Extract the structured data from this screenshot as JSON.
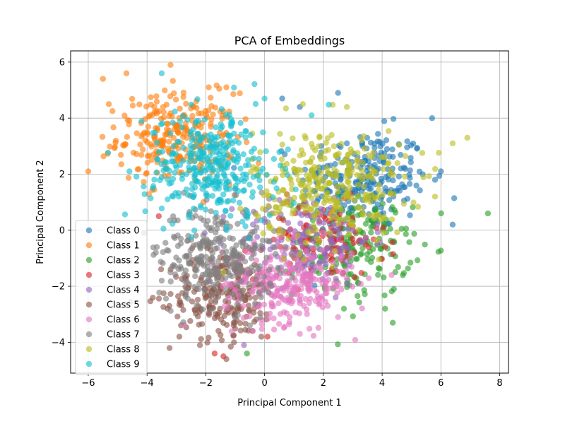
{
  "chart_data": {
    "type": "scatter",
    "title": "PCA of Embeddings",
    "xlabel": "Principal Component 1",
    "ylabel": "Principal Component 2",
    "xlim": [
      -6.6,
      8.3
    ],
    "ylim": [
      -5.1,
      6.4
    ],
    "xticks": [
      -6,
      -4,
      -2,
      0,
      2,
      4,
      6,
      8
    ],
    "yticks": [
      -4,
      -2,
      0,
      2,
      4,
      6
    ],
    "grid": true,
    "legend_position": "lower-left",
    "series": [
      {
        "name": "Class 0",
        "color": "#1f77b4",
        "center": [
          3.4,
          1.8
        ],
        "spread": [
          1.1,
          0.9
        ],
        "n": 240,
        "outliers": [
          [
            5.7,
            4.0
          ],
          [
            6.4,
            0.2
          ],
          [
            2.5,
            4.9
          ],
          [
            0.6,
            4.7
          ],
          [
            1.2,
            4.4
          ],
          [
            5.8,
            1.8
          ],
          [
            6.0,
            2.1
          ]
        ]
      },
      {
        "name": "Class 1",
        "color": "#ff7f0e",
        "center": [
          -3.0,
          3.3
        ],
        "spread": [
          1.0,
          0.8
        ],
        "n": 260,
        "outliers": [
          [
            -6.0,
            2.1
          ],
          [
            -5.5,
            5.4
          ],
          [
            -4.7,
            5.6
          ],
          [
            -3.2,
            5.9
          ],
          [
            -1.9,
            5.1
          ],
          [
            -1.3,
            5.1
          ],
          [
            -5.3,
            4.5
          ]
        ]
      },
      {
        "name": "Class 2",
        "color": "#2ca02c",
        "center": [
          3.0,
          -0.6
        ],
        "spread": [
          1.0,
          0.9
        ],
        "n": 200,
        "outliers": [
          [
            7.6,
            0.6
          ],
          [
            4.1,
            -2.8
          ],
          [
            4.4,
            -2.1
          ],
          [
            2.7,
            -2.8
          ],
          [
            -0.6,
            -4.4
          ]
        ]
      },
      {
        "name": "Class 3",
        "color": "#d62728",
        "center": [
          1.9,
          -0.4
        ],
        "spread": [
          1.1,
          0.7
        ],
        "n": 120,
        "outliers": [
          [
            -1.4,
            -4.5
          ],
          [
            -1.7,
            -4.4
          ],
          [
            0.1,
            -3.8
          ],
          [
            -3.6,
            0.5
          ],
          [
            4.1,
            -0.6
          ]
        ]
      },
      {
        "name": "Class 4",
        "color": "#9467bd",
        "center": [
          1.4,
          -0.3
        ],
        "spread": [
          1.1,
          0.8
        ],
        "n": 160,
        "outliers": [
          [
            -0.7,
            -4.1
          ],
          [
            2.6,
            -1.0
          ],
          [
            3.0,
            0.0
          ]
        ]
      },
      {
        "name": "Class 5",
        "color": "#8c564b",
        "center": [
          -1.4,
          -2.3
        ],
        "spread": [
          0.9,
          0.8
        ],
        "n": 230,
        "outliers": [
          [
            -2.9,
            -3.8
          ],
          [
            -2.2,
            -4.1
          ],
          [
            -1.3,
            -4.6
          ],
          [
            -3.3,
            -2.8
          ]
        ]
      },
      {
        "name": "Class 6",
        "color": "#e377c2",
        "center": [
          0.8,
          -1.9
        ],
        "spread": [
          1.1,
          0.7
        ],
        "n": 280,
        "outliers": [
          [
            2.5,
            -3.1
          ],
          [
            1.2,
            -3.7
          ],
          [
            -0.4,
            -3.6
          ]
        ]
      },
      {
        "name": "Class 7",
        "color": "#7f7f7f",
        "center": [
          -1.6,
          -0.9
        ],
        "spread": [
          1.0,
          0.9
        ],
        "n": 280,
        "outliers": [
          [
            -4.1,
            -0.1
          ],
          [
            -3.7,
            -0.8
          ],
          [
            -3.5,
            -1.8
          ],
          [
            -0.5,
            -3.4
          ]
        ]
      },
      {
        "name": "Class 8",
        "color": "#bcbd22",
        "center": [
          2.2,
          1.6
        ],
        "spread": [
          1.3,
          1.0
        ],
        "n": 320,
        "outliers": [
          [
            6.9,
            3.3
          ],
          [
            6.4,
            3.1
          ],
          [
            5.8,
            1.2
          ],
          [
            2.8,
            4.4
          ],
          [
            1.3,
            4.5
          ],
          [
            -1.4,
            -1.5
          ]
        ]
      },
      {
        "name": "Class 9",
        "color": "#17becf",
        "center": [
          -1.8,
          2.3
        ],
        "spread": [
          1.1,
          1.0
        ],
        "n": 340,
        "outliers": [
          [
            -3.5,
            5.6
          ],
          [
            -4.6,
            2.1
          ],
          [
            -3.8,
            1.5
          ],
          [
            1.6,
            4.1
          ],
          [
            0.0,
            4.7
          ],
          [
            -3.3,
            1.1
          ]
        ]
      }
    ]
  }
}
